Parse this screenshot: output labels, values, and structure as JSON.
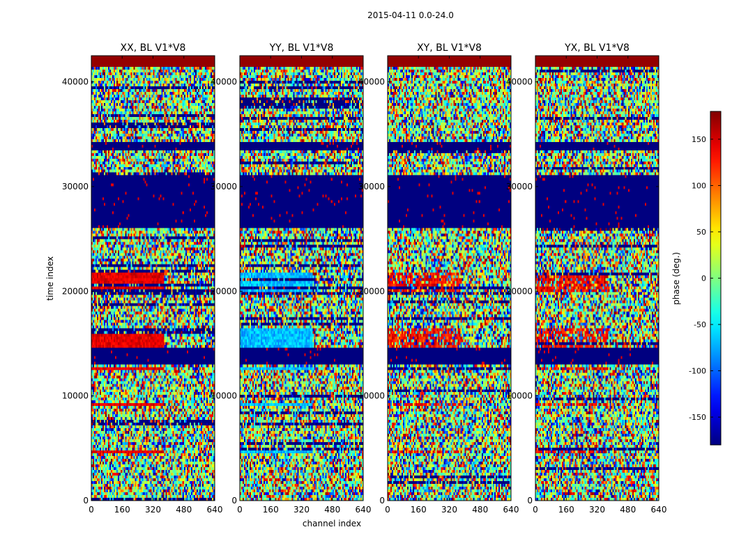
{
  "chart_data": {
    "type": "heatmap",
    "title": "2015-04-11 0.0-24.0",
    "xlabel": "channel index",
    "ylabel": "time index",
    "xlim": [
      0,
      640
    ],
    "ylim": [
      0,
      42500
    ],
    "x_ticks": [
      0,
      160,
      320,
      480,
      640
    ],
    "y_ticks": [
      0,
      10000,
      20000,
      30000,
      40000
    ],
    "panels": [
      {
        "title": "XX, BL V1*V8",
        "band_tint": "red"
      },
      {
        "title": "YY, BL V1*V8",
        "band_tint": "blue"
      },
      {
        "title": "XY, BL V1*V8",
        "band_tint": "mixed"
      },
      {
        "title": "YX, BL V1*V8",
        "band_tint": "mixed"
      }
    ],
    "colorbar": {
      "label": "phase (deg.)",
      "range": [
        -180,
        180
      ],
      "ticks": [
        150,
        100,
        50,
        0,
        -50,
        -100,
        -150
      ],
      "colormap": "jet"
    },
    "flagged_time_ranges": [
      [
        41500,
        42500
      ],
      [
        33500,
        34300
      ],
      [
        26000,
        31000
      ],
      [
        13000,
        14500
      ]
    ],
    "coherent_time_ranges": [
      [
        20000,
        21800
      ],
      [
        14500,
        16500
      ],
      [
        9000,
        9400
      ],
      [
        4500,
        4700
      ],
      [
        12400,
        12700
      ]
    ],
    "coherent_channel_limit": 380
  }
}
